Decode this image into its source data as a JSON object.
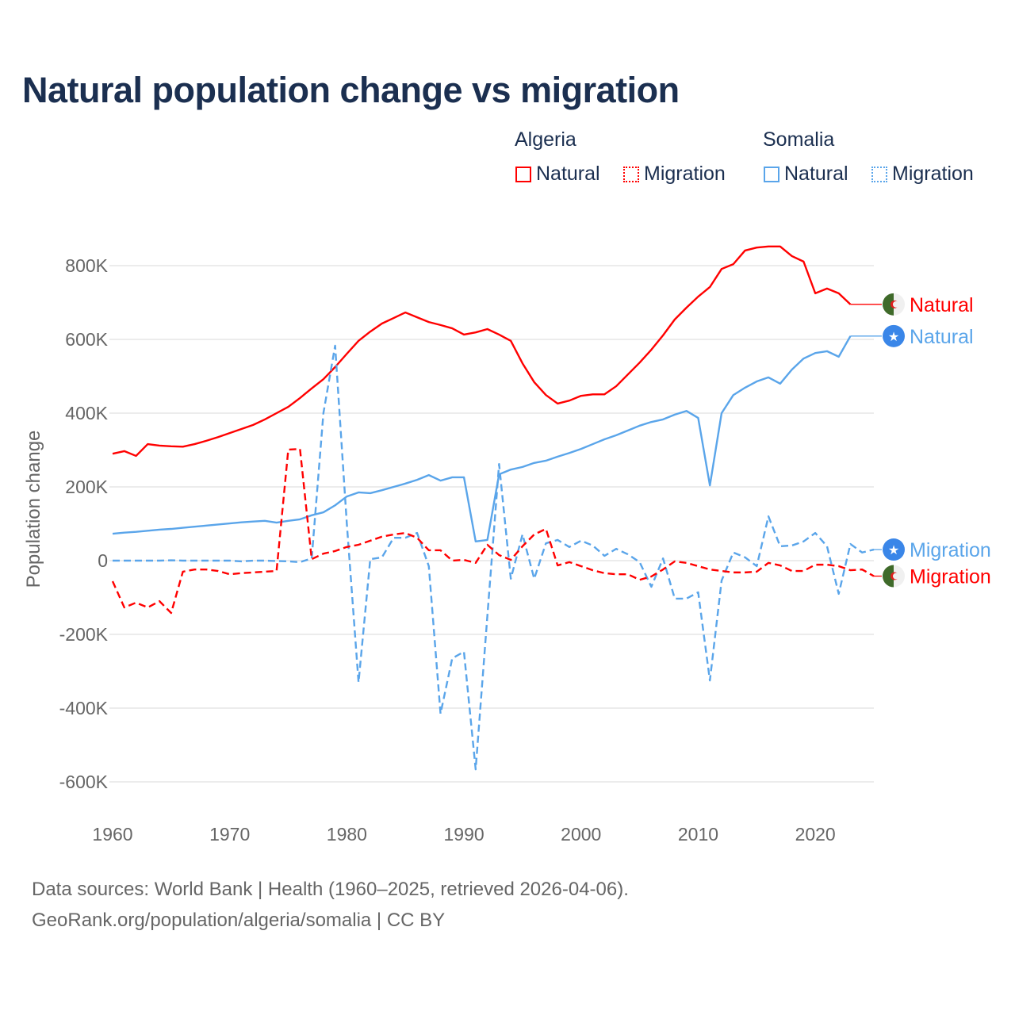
{
  "chart_data": {
    "type": "line",
    "title": "Natural population change vs migration",
    "ylabel": "Population change",
    "xlabel": "",
    "xlim": [
      1960,
      2025
    ],
    "ylim": [
      -600000,
      800000
    ],
    "y_ticks": [
      800000,
      600000,
      400000,
      200000,
      0,
      -200000,
      -400000,
      -600000
    ],
    "y_tick_labels": [
      "800K",
      "600K",
      "400K",
      "200K",
      "0",
      "-200K",
      "-400K",
      "-600K"
    ],
    "x_ticks": [
      1960,
      1970,
      1980,
      1990,
      2000,
      2010,
      2020
    ],
    "x_tick_labels": [
      "1960",
      "1970",
      "1980",
      "1990",
      "2000",
      "2010",
      "2020"
    ],
    "grid": true,
    "legend_groups": [
      {
        "name": "Algeria",
        "items": [
          "Natural",
          "Migration"
        ]
      },
      {
        "name": "Somalia",
        "items": [
          "Natural",
          "Migration"
        ]
      }
    ],
    "x_start": 1960,
    "series": [
      {
        "name": "Algeria Natural",
        "country": "Algeria",
        "kind": "Natural",
        "label": "Natural",
        "color": "#ff0000",
        "dash": false,
        "values": [
          290,
          297,
          284,
          316,
          312,
          310,
          309,
          316,
          325,
          335,
          346,
          357,
          368,
          383,
          400,
          417,
          441,
          467,
          492,
          525,
          561,
          596,
          621,
          643,
          658,
          673,
          660,
          647,
          639,
          630,
          613,
          619,
          628,
          613,
          596,
          535,
          484,
          449,
          426,
          434,
          447,
          451,
          451,
          473,
          505,
          537,
          572,
          611,
          654,
          686,
          716,
          742,
          791,
          804,
          841,
          849,
          852,
          852,
          826,
          811,
          725,
          738,
          725,
          695
        ]
      },
      {
        "name": "Somalia Natural",
        "country": "Somalia",
        "kind": "Natural",
        "label": "Natural",
        "color": "#5aa5ea",
        "dash": false,
        "values": [
          73,
          76,
          78,
          81,
          84,
          86,
          89,
          92,
          95,
          98,
          101,
          104,
          106,
          108,
          103,
          108,
          112,
          123,
          131,
          150,
          174,
          185,
          183,
          191,
          200,
          209,
          219,
          232,
          217,
          226,
          226,
          52,
          56,
          234,
          247,
          254,
          265,
          271,
          282,
          292,
          303,
          316,
          329,
          340,
          353,
          366,
          376,
          383,
          396,
          406,
          387,
          204,
          400,
          449,
          469,
          486,
          497,
          480,
          518,
          548,
          563,
          568,
          553,
          609
        ]
      },
      {
        "name": "Somalia Migration",
        "country": "Somalia",
        "kind": "Migration",
        "label": "Migration",
        "color": "#5aa5ea",
        "dash": true,
        "values": [
          0,
          0,
          0,
          0,
          0,
          1,
          0,
          0,
          0,
          0,
          0,
          -2,
          0,
          0,
          -1,
          -2,
          -4,
          6,
          400,
          583,
          100,
          -330,
          4,
          9,
          62,
          62,
          75,
          -15,
          -415,
          -265,
          -247,
          -566,
          -150,
          262,
          -49,
          71,
          -49,
          47,
          56,
          37,
          54,
          41,
          13,
          32,
          17,
          -4,
          -71,
          6,
          -103,
          -103,
          -86,
          -325,
          -54,
          22,
          9,
          -15,
          120,
          39,
          41,
          52,
          75,
          39,
          -90,
          45,
          22,
          30
        ]
      },
      {
        "name": "Algeria Migration",
        "country": "Algeria",
        "kind": "Migration",
        "label": "Migration",
        "color": "#ff0000",
        "dash": true,
        "values": [
          -56,
          -127,
          -114,
          -127,
          -110,
          -142,
          -30,
          -24,
          -24,
          -28,
          -37,
          -34,
          -32,
          -30,
          -28,
          301,
          303,
          4,
          19,
          26,
          37,
          43,
          54,
          65,
          71,
          75,
          62,
          28,
          28,
          0,
          2,
          -6,
          43,
          15,
          2,
          39,
          71,
          86,
          -13,
          -4,
          -15,
          -26,
          -34,
          -37,
          -37,
          -52,
          -43,
          -24,
          -2,
          -6,
          -15,
          -24,
          -28,
          -32,
          -32,
          -30,
          -6,
          -13,
          -28,
          -28,
          -11,
          -11,
          -15,
          -26,
          -24,
          -42
        ]
      }
    ],
    "value_unit": "thousands"
  },
  "footer": {
    "line1": "Data sources: World Bank | Health (1960–2025, retrieved 2026-04-06).",
    "line2": "GeoRank.org/population/algeria/somalia | CC BY"
  }
}
